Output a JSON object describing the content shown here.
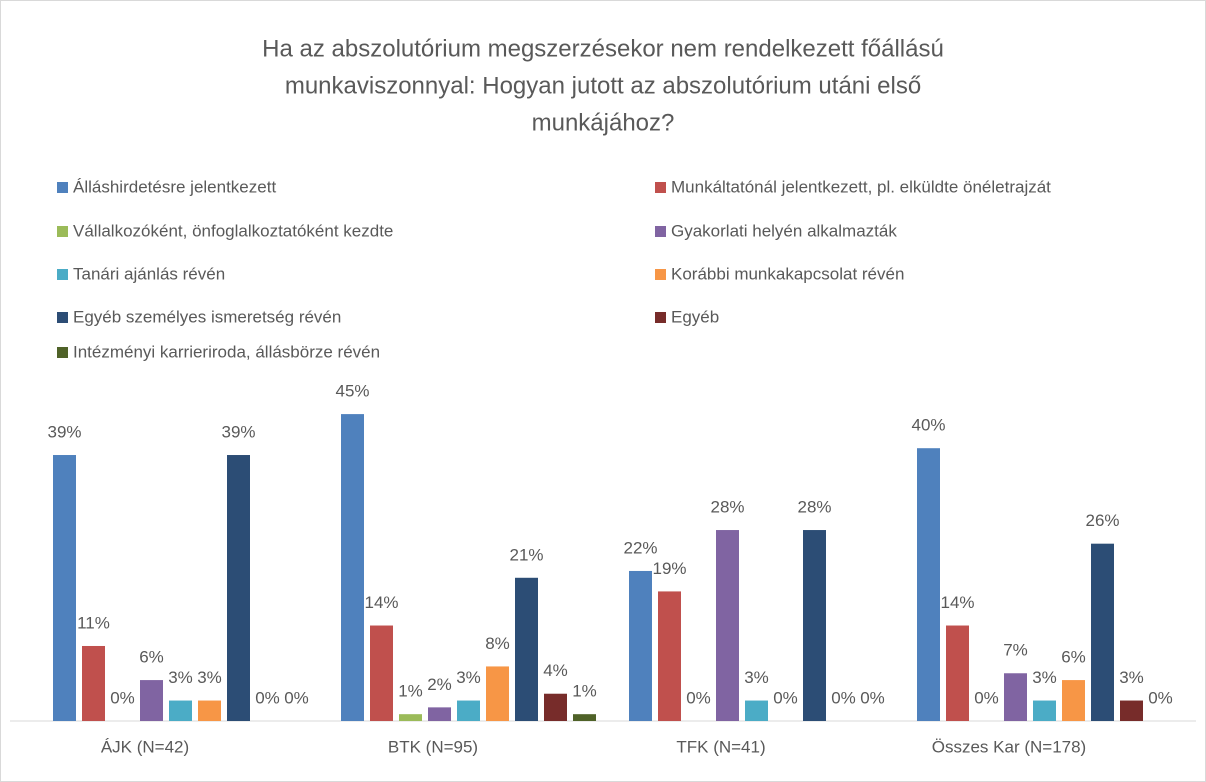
{
  "chart_data": {
    "type": "bar",
    "title": [
      "Ha az abszolutórium megszerzésekor nem rendelkezett főállású",
      "munkaviszonnyal: Hogyan jutott az abszolutórium utáni első",
      "munkájához?"
    ],
    "categories": [
      "ÁJK (N=42)",
      "BTK (N=95)",
      "TFK (N=41)",
      "Összes Kar (N=178)"
    ],
    "legend": "top",
    "series": [
      {
        "name": "Álláshirdetésre jelentkezett",
        "color": "#4f81bd",
        "values": [
          39,
          45,
          22,
          40
        ],
        "value_labels": [
          "39%",
          "45%",
          "22%",
          "40%"
        ]
      },
      {
        "name": "Munkáltatónál jelentkezett, pl. elküldte önéletrajzát",
        "color": "#c0504d",
        "values": [
          11,
          14,
          19,
          14
        ],
        "value_labels": [
          "11%",
          "14%",
          "19%",
          "14%"
        ]
      },
      {
        "name": "Vállalkozóként, önfoglalkoztatóként kezdte",
        "color": "#9bbb59",
        "values": [
          0,
          1,
          0,
          0
        ],
        "value_labels": [
          "0%",
          "1%",
          "0%",
          "0%"
        ]
      },
      {
        "name": "Gyakorlati helyén alkalmazták",
        "color": "#8064a2",
        "values": [
          6,
          2,
          28,
          7
        ],
        "value_labels": [
          "6%",
          "2%",
          "28%",
          "7%"
        ]
      },
      {
        "name": "Tanári ajánlás révén",
        "color": "#4bacc6",
        "values": [
          3,
          3,
          3,
          3
        ],
        "value_labels": [
          "3%",
          "3%",
          "3%",
          "3%"
        ]
      },
      {
        "name": "Korábbi munkakapcsolat révén",
        "color": "#f79646",
        "values": [
          3,
          8,
          0,
          6
        ],
        "value_labels": [
          "3%",
          "8%",
          "0%",
          "6%"
        ]
      },
      {
        "name": "Egyéb személyes ismeretség révén",
        "color": "#2c4d75",
        "values": [
          39,
          21,
          28,
          26
        ],
        "value_labels": [
          "39%",
          "21%",
          "28%",
          "26%"
        ]
      },
      {
        "name": "Egyéb",
        "color": "#772c2a",
        "values": [
          0,
          4,
          0,
          3
        ],
        "value_labels": [
          "0%",
          "4%",
          "0%",
          "3%"
        ]
      },
      {
        "name": "Intézményi karrieriroda, állásbörze révén",
        "color": "#4f6228",
        "values": [
          0,
          1,
          0,
          0
        ],
        "value_labels": [
          "0%",
          "1%",
          "0%",
          "0%"
        ]
      }
    ]
  }
}
